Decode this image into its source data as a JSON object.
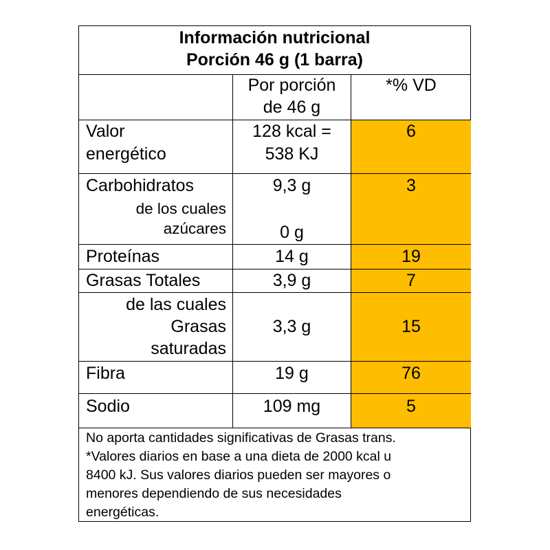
{
  "header": {
    "title": "Información nutricional",
    "serving": "Porción 46 g (1 barra)"
  },
  "columns": {
    "per_serving_line1": "Por porción",
    "per_serving_line2": "de 46 g",
    "dv": "*% VD"
  },
  "rows": [
    {
      "label_lines": [
        "Valor",
        "energético"
      ],
      "amount_lines": [
        "128 kcal =",
        "538 KJ"
      ],
      "dv": "6"
    },
    {
      "label": "Carbohidratos",
      "amount": "9,3 g",
      "dv": "3",
      "sub_label_lines": [
        "de los cuales",
        "azúcares"
      ],
      "sub_amount": "0 g"
    },
    {
      "label": "Proteínas",
      "amount": "14 g",
      "dv": "19"
    },
    {
      "label": "Grasas Totales",
      "amount": "3,9 g",
      "dv": "7"
    },
    {
      "sub_label_lines": [
        "de las cuales",
        "Grasas",
        "saturadas"
      ],
      "amount": "3,3 g",
      "dv": "15"
    },
    {
      "label": "Fibra",
      "amount": "19 g",
      "dv": "76"
    },
    {
      "label": "Sodio",
      "amount": "109 mg",
      "dv": "5"
    }
  ],
  "footnote_lines": [
    "No aporta cantidades significativas de Grasas trans.",
    "*Valores diarios en base a una dieta de 2000 kcal u",
    "8400 kJ. Sus valores diarios pueden ser mayores o",
    "menores dependiendo de sus necesidades",
    "energéticas."
  ],
  "colors": {
    "highlight": "#FFBD00",
    "border": "#000000"
  }
}
